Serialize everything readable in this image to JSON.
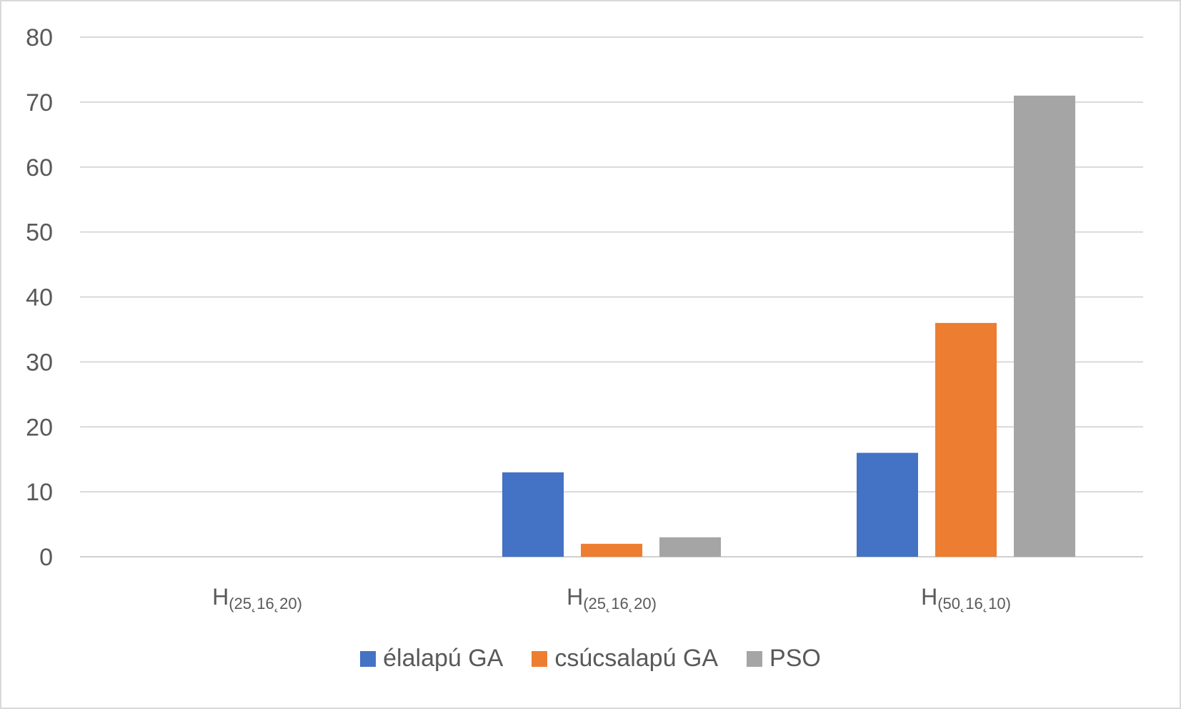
{
  "chart_data": {
    "type": "bar",
    "categories": [
      {
        "main": "H",
        "sub": "(25˛16˛20)"
      },
      {
        "main": "H",
        "sub": "(25˛16˛20)"
      },
      {
        "main": "H",
        "sub": "(50˛16˛10)"
      }
    ],
    "series": [
      {
        "name": "élalapú GA",
        "color": "#4472c4",
        "values": [
          0,
          13,
          16
        ]
      },
      {
        "name": "csúcsalapú GA",
        "color": "#ed7d31",
        "values": [
          0,
          2,
          36
        ]
      },
      {
        "name": "PSO",
        "color": "#a5a5a5",
        "values": [
          0,
          3,
          71
        ]
      }
    ],
    "ylim": [
      0,
      80
    ],
    "yticks": [
      0,
      10,
      20,
      30,
      40,
      50,
      60,
      70,
      80
    ],
    "grid": true,
    "legend_position": "bottom",
    "title": "",
    "xlabel": "",
    "ylabel": ""
  }
}
